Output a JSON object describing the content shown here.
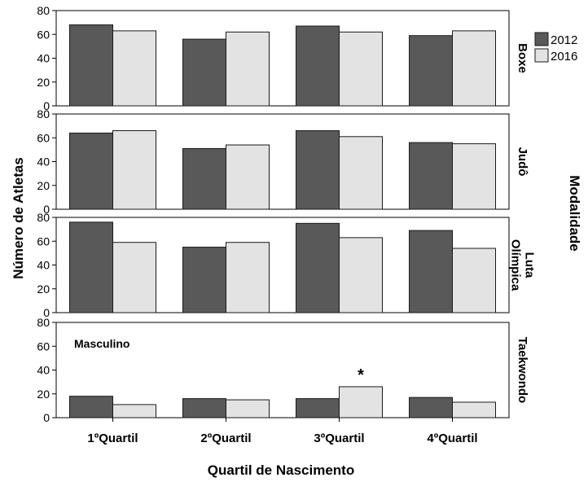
{
  "chart_data": {
    "type": "bar",
    "xlabel": "Quartil de Nascimento",
    "ylabel": "Número de Atletas",
    "facet_label": "Modalidade",
    "categories": [
      "1ºQuartil",
      "2ºQuartil",
      "3ºQuartil",
      "4ºQuartil"
    ],
    "ylim": [
      0,
      80
    ],
    "yticks": [
      0,
      20,
      40,
      60,
      80
    ],
    "grid": false,
    "legend": {
      "placement": "top-right",
      "entries": [
        {
          "name": "2012",
          "color": "#595959"
        },
        {
          "name": "2016",
          "color": "#e3e3e3"
        }
      ]
    },
    "annotation": "Masculino",
    "significance_marker": "*",
    "panels": [
      {
        "label": "Boxe",
        "lines": [
          "Boxe"
        ],
        "series": [
          {
            "name": "2012",
            "values": [
              68,
              56,
              67,
              59
            ]
          },
          {
            "name": "2016",
            "values": [
              63,
              62,
              62,
              63
            ]
          }
        ]
      },
      {
        "label": "Judô",
        "lines": [
          "Judô"
        ],
        "series": [
          {
            "name": "2012",
            "values": [
              64,
              51,
              66,
              56
            ]
          },
          {
            "name": "2016",
            "values": [
              66,
              54,
              61,
              55
            ]
          }
        ]
      },
      {
        "label": "Luta Olímpica",
        "lines": [
          "Luta",
          "Olímpica"
        ],
        "series": [
          {
            "name": "2012",
            "values": [
              76,
              55,
              75,
              69
            ]
          },
          {
            "name": "2016",
            "values": [
              59,
              59,
              63,
              54
            ]
          }
        ]
      },
      {
        "label": "Taekwondo",
        "lines": [
          "Taekwondo"
        ],
        "series": [
          {
            "name": "2012",
            "values": [
              18,
              16,
              16,
              17
            ]
          },
          {
            "name": "2016",
            "values": [
              11,
              15,
              26,
              13
            ]
          }
        ],
        "starred": {
          "series": "2016",
          "category": "3ºQuartil"
        }
      }
    ]
  }
}
